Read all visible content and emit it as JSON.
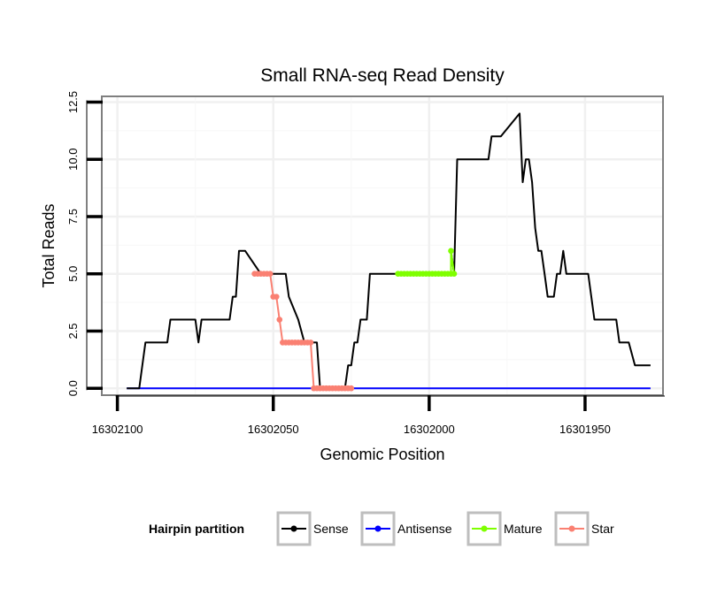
{
  "chart_data": {
    "type": "line",
    "title": "Small RNA-seq Read Density",
    "xlabel": "Genomic Position",
    "ylabel": "Total Reads",
    "xlim": [
      16302105,
      16301925
    ],
    "ylim": [
      -0.3,
      12.75
    ],
    "x_ticks": [
      16302100,
      16302050,
      16302000,
      16301950
    ],
    "x_tick_labels": [
      "16302100",
      "16302050",
      "16302000",
      "16301950"
    ],
    "y_ticks": [
      0,
      2.5,
      5,
      7.5,
      10,
      12.5
    ],
    "y_tick_labels": [
      "0.0",
      "2.5",
      "5.0",
      "7.5",
      "10.0",
      "12.5"
    ],
    "grid": true,
    "legend": {
      "title": "Hairpin partition",
      "position": "bottom",
      "entries": [
        {
          "name": "Sense",
          "color": "#000000"
        },
        {
          "name": "Antisense",
          "color": "#0000ff"
        },
        {
          "name": "Mature",
          "color": "#7fff00"
        },
        {
          "name": "Star",
          "color": "#fa8072"
        }
      ]
    },
    "series": [
      {
        "name": "Sense",
        "color": "#000000",
        "marker": false,
        "x": [
          16302097,
          16302093,
          16302092,
          16302092,
          16302091,
          16302091,
          16302090,
          16302084,
          16302083,
          16302075,
          16302074,
          16302073,
          16302064,
          16302063,
          16302062,
          16302061,
          16302059,
          16302054,
          16302050,
          16302046,
          16302045,
          16302042,
          16302040,
          16302038,
          16302036,
          16302035,
          16302033,
          16302027,
          16302026,
          16302025,
          16302024,
          16302023,
          16302022,
          16302020,
          16302019,
          16302017,
          16302013,
          16302012,
          16302011,
          16302010,
          16301994,
          16301993,
          16301993,
          16301992,
          16301991,
          16301981,
          16301980,
          16301978,
          16301977,
          16301971,
          16301971,
          16301970,
          16301969,
          16301968,
          16301967,
          16301966,
          16301965,
          16301964,
          16301963,
          16301962,
          16301960,
          16301959,
          16301958,
          16301957,
          16301956,
          16301949,
          16301947,
          16301940,
          16301939,
          16301936,
          16301934,
          16301929
        ],
        "y": [
          0,
          0,
          1,
          1,
          2,
          2,
          2,
          2,
          3,
          3,
          2,
          3,
          3,
          4,
          4,
          6,
          6,
          5,
          5,
          5,
          4,
          3,
          2,
          2,
          2,
          0,
          0,
          0,
          1,
          1,
          2,
          2,
          3,
          3,
          5,
          5,
          5,
          5,
          5,
          5,
          5,
          5,
          6,
          5,
          10,
          10,
          11,
          11,
          11,
          12,
          12,
          9,
          10,
          10,
          9,
          7,
          6,
          6,
          5,
          4,
          4,
          5,
          5,
          6,
          5,
          5,
          3,
          3,
          2,
          2,
          1,
          1
        ]
      },
      {
        "name": "Antisense",
        "color": "#0000ff",
        "marker": false,
        "x": [
          16302097,
          16301929
        ],
        "y": [
          0,
          0
        ]
      },
      {
        "name": "Mature",
        "color": "#7fff00",
        "marker": true,
        "x": [
          16302010,
          16302009,
          16302008,
          16302007,
          16302006,
          16302005,
          16302004,
          16302003,
          16302002,
          16302001,
          16302000,
          16301999,
          16301998,
          16301997,
          16301996,
          16301995,
          16301994,
          16301993,
          16301993,
          16301992
        ],
        "y": [
          5,
          5,
          5,
          5,
          5,
          5,
          5,
          5,
          5,
          5,
          5,
          5,
          5,
          5,
          5,
          5,
          5,
          5,
          6,
          5
        ]
      },
      {
        "name": "Star",
        "color": "#fa8072",
        "marker": true,
        "x": [
          16302056,
          16302055,
          16302054,
          16302053,
          16302052,
          16302051,
          16302050,
          16302049,
          16302048,
          16302047,
          16302046,
          16302045,
          16302044,
          16302043,
          16302042,
          16302041,
          16302040,
          16302039,
          16302038,
          16302037,
          16302036,
          16302035,
          16302034,
          16302033,
          16302032,
          16302031,
          16302030,
          16302029,
          16302028,
          16302027,
          16302026,
          16302025
        ],
        "y": [
          5,
          5,
          5,
          5,
          5,
          5,
          4,
          4,
          3,
          2,
          2,
          2,
          2,
          2,
          2,
          2,
          2,
          2,
          2,
          0,
          0,
          0,
          0,
          0,
          0,
          0,
          0,
          0,
          0,
          0,
          0,
          0
        ]
      }
    ]
  }
}
